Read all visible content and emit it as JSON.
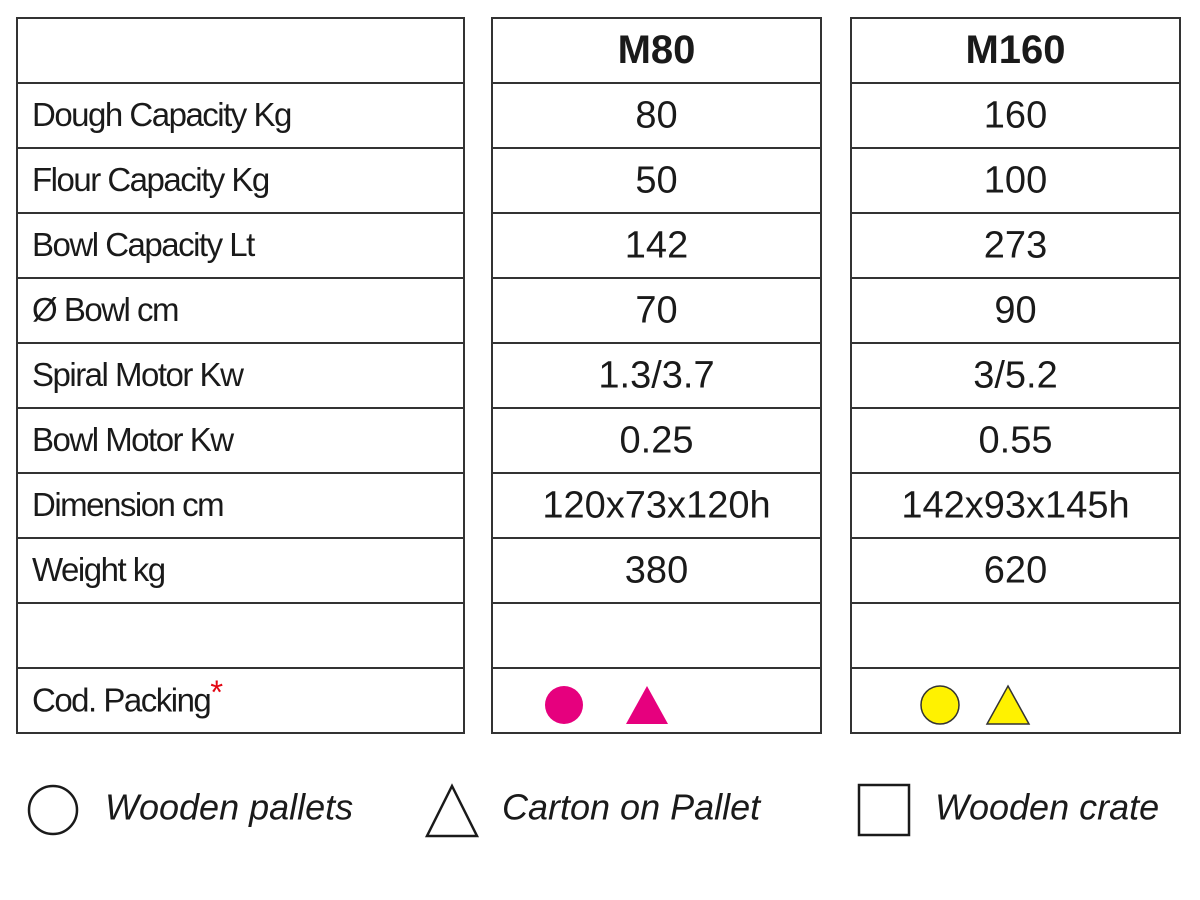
{
  "table": {
    "columns": [
      "M80",
      "M160"
    ],
    "rows": [
      {
        "label": "Dough Capacity Kg",
        "values": [
          80,
          160
        ]
      },
      {
        "label": "Flour Capacity Kg",
        "values": [
          50,
          100
        ]
      },
      {
        "label": "Bowl Capacity Lt",
        "values": [
          142,
          273
        ]
      },
      {
        "label": "Ø Bowl cm",
        "values": [
          70,
          90
        ]
      },
      {
        "label": "Spiral Motor Kw",
        "values": [
          "1.3/3.7",
          "3/5.2"
        ]
      },
      {
        "label": "Bowl Motor Kw",
        "values": [
          0.25,
          0.55
        ]
      },
      {
        "label": "Dimension cm",
        "values": [
          "120x73x120h",
          "142x93x145h"
        ]
      },
      {
        "label": "Weight kg",
        "values": [
          380,
          620
        ]
      }
    ],
    "packing": {
      "label": "Cod. Packing",
      "asterisk": "*"
    }
  },
  "legend": [
    "Wooden pallets",
    "Carton on Pallet",
    "Wooden crate"
  ]
}
